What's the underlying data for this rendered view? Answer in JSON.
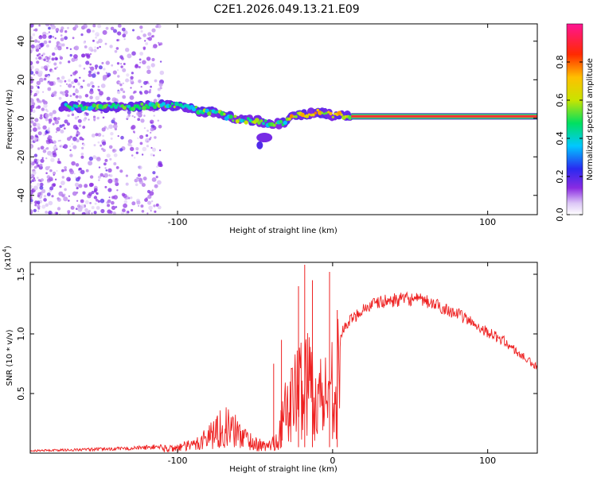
{
  "title": "C2E1.2026.049.13.21.E09",
  "chart_data": [
    {
      "type": "heatmap",
      "xlabel": "Height of straight line (km)",
      "ylabel": "Frequency (Hz)",
      "xlim": [
        -195,
        132
      ],
      "ylim": [
        -50,
        49
      ],
      "xticks": [
        -100,
        100
      ],
      "yticks": [
        -40,
        -20,
        0,
        20,
        40
      ],
      "colorbar": {
        "label": "Normalized spectral amplitude",
        "range": [
          0,
          1
        ],
        "ticks": [
          "0.0",
          "0.2",
          "0.4",
          "0.6",
          "0.8"
        ],
        "tick_values": [
          0.0,
          0.2,
          0.4,
          0.6,
          0.8
        ]
      },
      "ridge": {
        "x": [
          -170,
          -150,
          -130,
          -110,
          -95,
          -85,
          -75,
          -65,
          -55,
          -45,
          -38,
          -30,
          -24,
          -20,
          -15,
          -10,
          -5,
          0,
          5,
          10,
          132
        ],
        "y": [
          6,
          6,
          6,
          7,
          6,
          4,
          3,
          0,
          -1,
          -2,
          -3,
          -2,
          2,
          2,
          2,
          3,
          3,
          1,
          2,
          1,
          1
        ]
      }
    },
    {
      "type": "line",
      "xlabel": "Height of straight line (km)",
      "ylabel": "SNR (10 * v/v)",
      "y_multiplier": "(x10",
      "y_exponent": "4",
      "xlim": [
        -195,
        132
      ],
      "ylim": [
        0,
        1.6
      ],
      "xticks": [
        -100,
        0,
        100
      ],
      "yticks": [
        "0.5",
        "1.0",
        "1.5"
      ],
      "ytick_values": [
        0.5,
        1.0,
        1.5
      ],
      "series_color": "#ee2222",
      "envelope": {
        "x": [
          -195,
          -160,
          -130,
          -105,
          -90,
          -80,
          -70,
          -60,
          -50,
          -42,
          -35,
          -30,
          -25,
          -20,
          -15,
          -10,
          -5,
          0,
          10,
          20,
          30,
          40,
          50,
          60,
          70,
          80,
          90,
          100,
          110,
          120,
          132
        ],
        "y": [
          0.02,
          0.03,
          0.04,
          0.06,
          0.1,
          0.22,
          0.35,
          0.25,
          0.12,
          0.08,
          0.2,
          0.55,
          0.72,
          0.88,
          0.95,
          0.7,
          0.75,
          0.9,
          1.1,
          1.22,
          1.27,
          1.29,
          1.3,
          1.28,
          1.23,
          1.18,
          1.1,
          1.02,
          0.95,
          0.84,
          0.72
        ]
      },
      "spikes": [
        {
          "x": -38,
          "y": 0.75
        },
        {
          "x": -33,
          "y": 0.95
        },
        {
          "x": -22,
          "y": 1.4
        },
        {
          "x": -18,
          "y": 1.58
        },
        {
          "x": -13,
          "y": 1.45
        },
        {
          "x": -2,
          "y": 1.52
        },
        {
          "x": 3,
          "y": 1.2
        }
      ]
    }
  ]
}
